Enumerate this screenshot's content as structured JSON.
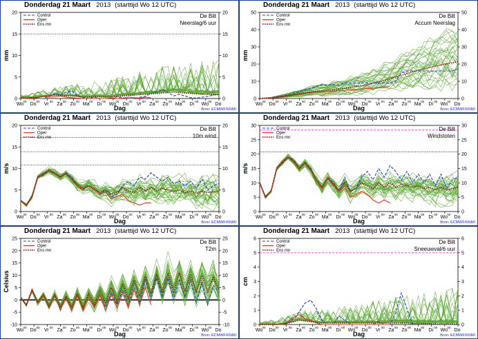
{
  "meta": {
    "title_main": "Donderdag 21 Maart",
    "title_year": "2013",
    "title_run": "(starttijd  Wo 12 UTC)",
    "location": "De Bilt",
    "source": "Bron: ECMWF/KNMI",
    "xlabel": "Dag",
    "days": [
      "Wo",
      "Do",
      "Vr",
      "Za",
      "Zo",
      "Ma",
      "Di",
      "Wo",
      "Do",
      "Vr",
      "Za",
      "Zo",
      "Ma",
      "Di",
      "Wo",
      "Do"
    ],
    "hour_mark": "00",
    "legend": [
      "Control",
      "Oper",
      "Ens mn"
    ]
  },
  "colors": {
    "control": "#1f3fd0",
    "oper": "#e8321e",
    "ensmean": "#8b1a1a",
    "members": "#5aa832",
    "refline": "#000000",
    "magenta": "#ff33ff",
    "source": "#1a1aff"
  },
  "chart_data": [
    {
      "type": "line",
      "id": "precip6h",
      "label": "Neerslag/6 uur",
      "ylabel": "mm",
      "ylim": [
        0,
        20
      ],
      "yticks": [
        0,
        5,
        10,
        15,
        20
      ],
      "ref_lines": [
        {
          "value": 15,
          "style": "dotted",
          "color": "black"
        }
      ],
      "series": [
        {
          "name": "Control",
          "values": [
            0,
            0,
            0.3,
            0,
            0,
            0.5,
            1.2,
            0.8,
            1.5,
            1.8,
            0.6,
            0.2,
            0,
            0.3,
            0,
            0,
            0,
            0.4,
            0.2,
            0,
            0,
            0.3,
            0.5,
            1.2,
            1.6,
            2.1,
            1.4,
            0.6,
            1,
            0.6,
            0.2,
            0.1,
            0.3,
            0.5,
            0.8,
            1
          ]
        },
        {
          "name": "Oper",
          "values": [
            0,
            0,
            0.1,
            0.2,
            0.5,
            0.3,
            0.4,
            0.6,
            0.3,
            0.2,
            0.1,
            0,
            0,
            0,
            0,
            0,
            0.2,
            0,
            0.1,
            0.3,
            0.2,
            0.1,
            0.3,
            0.2
          ]
        },
        {
          "name": "Ens mn",
          "values": [
            0.2,
            0.1,
            0.2,
            0.3,
            0.5,
            0.6,
            0.8,
            0.7,
            0.6,
            0.6,
            0.5,
            0.3,
            0.3,
            0.4,
            0.4,
            0.3,
            0.4,
            0.5,
            0.6,
            0.7,
            0.8,
            0.9,
            1,
            1.1,
            1.2,
            1.3,
            1.4,
            1.5,
            1.4,
            1.3,
            1.2,
            1.1,
            1,
            1,
            0.9,
            0.9
          ]
        }
      ]
    },
    {
      "type": "line",
      "id": "precipAccum",
      "label": "Accum Neerslag",
      "ylabel": "mm",
      "ylim": [
        0,
        50
      ],
      "yticks": [
        0,
        10,
        20,
        30,
        40,
        50
      ],
      "ref_lines": [],
      "series": [
        {
          "name": "Control",
          "values": [
            0,
            0,
            0.5,
            1,
            1.5,
            2,
            3,
            4,
            5,
            6,
            7,
            8,
            8,
            8,
            8,
            9,
            9,
            9,
            9,
            9,
            9,
            9,
            9,
            9,
            10,
            15,
            16,
            16,
            16,
            16,
            16,
            16,
            16,
            16,
            16,
            17
          ]
        },
        {
          "name": "Oper",
          "values": [
            0,
            0,
            0.2,
            0.5,
            1,
            1.5,
            2,
            2.5,
            3,
            3.5,
            3.8,
            4,
            4.2,
            4.5,
            4.6,
            4.8,
            5,
            5.2,
            5.5,
            5.8,
            6,
            6.3,
            6.5,
            7
          ]
        },
        {
          "name": "Ens mn",
          "values": [
            0,
            0.2,
            0.4,
            0.8,
            1.2,
            1.6,
            2.2,
            2.8,
            3.3,
            3.8,
            4.2,
            4.5,
            4.8,
            5.2,
            5.6,
            6,
            6.5,
            7,
            7.5,
            8.2,
            9,
            9.8,
            10.6,
            11.5,
            12.5,
            13.5,
            14.5,
            15.5,
            16.4,
            17.2,
            18,
            18.8,
            19.5,
            20.2,
            20.8,
            21.5
          ]
        }
      ]
    },
    {
      "type": "line",
      "id": "wind10m",
      "label": "10m wind",
      "ylabel": "m/s",
      "ylim": [
        0,
        20
      ],
      "yticks": [
        0,
        5,
        10,
        15,
        20
      ],
      "ref_lines": [
        {
          "value": 10.8,
          "style": "dotted",
          "color": "black"
        },
        {
          "value": 13.9,
          "style": "dotted",
          "color": "black"
        },
        {
          "value": 17.2,
          "style": "dotted",
          "color": "black"
        }
      ],
      "series": [
        {
          "name": "Control",
          "values": [
            2.5,
            1.5,
            3.5,
            8,
            8.5,
            9.5,
            9,
            8,
            9,
            8,
            6,
            5,
            6,
            5,
            4,
            5,
            3.5,
            4,
            6,
            7,
            6,
            8,
            7.5,
            9,
            8,
            7,
            8,
            6.5,
            7,
            6,
            7,
            5.5,
            7.5,
            5,
            6,
            6.5
          ]
        },
        {
          "name": "Oper",
          "values": [
            2.5,
            1.5,
            3.5,
            8,
            8.8,
            9.6,
            8.8,
            8.2,
            8.8,
            7.5,
            6,
            5.2,
            6,
            5,
            4,
            4.5,
            3,
            3.5,
            4,
            2.5,
            2,
            1.5,
            2,
            2
          ]
        },
        {
          "name": "Ens mn",
          "values": [
            2.5,
            1.5,
            3.5,
            8,
            8.7,
            9.5,
            8.8,
            8,
            8.8,
            7.6,
            6.2,
            5.4,
            6,
            5.2,
            4.4,
            5,
            4,
            4.5,
            5.5,
            4.8,
            4.4,
            5.6,
            4.8,
            5.6,
            4.8,
            5.4,
            5,
            4.6,
            5,
            4.4,
            4.8,
            4.2,
            4.8,
            4.4,
            4.6,
            4.8
          ]
        }
      ]
    },
    {
      "type": "line",
      "id": "gusts",
      "label": "Windstoten",
      "ylabel": "m/s",
      "ylim": [
        0,
        30
      ],
      "yticks": [
        0,
        5,
        10,
        15,
        20,
        25,
        30
      ],
      "ref_lines": [
        {
          "value": 28.4,
          "style": "dashed",
          "color": "magenta"
        },
        {
          "value": 20.8,
          "style": "dotted",
          "color": "black"
        }
      ],
      "series": [
        {
          "name": "Control",
          "values": [
            10,
            5,
            7,
            15,
            17,
            19,
            18,
            15,
            17,
            15,
            11,
            8,
            12,
            10,
            7,
            12,
            7,
            8,
            12,
            14,
            11,
            15,
            12,
            16,
            14,
            11,
            14,
            10,
            13,
            10,
            13,
            9,
            13,
            8,
            11,
            12
          ]
        },
        {
          "name": "Oper",
          "values": [
            10,
            5,
            7,
            15,
            17.5,
            19,
            17.5,
            15,
            17,
            14.5,
            11,
            8,
            12,
            9,
            7,
            9,
            5,
            6,
            7,
            6,
            4,
            3,
            4,
            3
          ]
        },
        {
          "name": "Ens mn",
          "values": [
            10,
            5,
            7,
            15,
            17,
            19,
            17.5,
            15,
            17,
            14.5,
            11,
            8.5,
            11.5,
            9.5,
            7.5,
            10,
            7,
            8,
            10,
            9,
            8,
            10,
            8.5,
            10,
            8.5,
            9.5,
            9,
            8.5,
            9,
            8,
            8.5,
            7.5,
            8.5,
            7.5,
            8,
            8.5
          ]
        }
      ]
    },
    {
      "type": "line",
      "id": "t2m",
      "label": "T2m",
      "ylabel": "Celsius",
      "ylim": [
        -10,
        25
      ],
      "yticks": [
        -10,
        -5,
        0,
        5,
        10,
        15,
        20,
        25
      ],
      "ref_lines": [
        {
          "value": 0,
          "style": "solid",
          "color": "black"
        }
      ],
      "series": [
        {
          "name": "Control",
          "values": [
            1,
            -2,
            4,
            -1,
            2,
            -3,
            2,
            -4,
            1,
            -4,
            2,
            -4,
            1,
            -3,
            2,
            -3,
            3,
            -2,
            4,
            -2,
            6,
            -1,
            8,
            0,
            9,
            1,
            9,
            0,
            8,
            1,
            8,
            -1,
            7,
            -2,
            6,
            3
          ]
        },
        {
          "name": "Oper",
          "values": [
            1,
            -2,
            4,
            -1,
            2,
            -3,
            2,
            -4,
            1,
            -4,
            2,
            -4,
            1,
            -3,
            2,
            -4,
            2,
            -3,
            3,
            -3,
            4,
            -2,
            5,
            -2
          ]
        },
        {
          "name": "Ens mn",
          "values": [
            1,
            -2,
            4,
            -1,
            2,
            -2.5,
            2,
            -3,
            1.5,
            -3,
            2.5,
            -3,
            2.5,
            -2,
            3.5,
            -1.5,
            5,
            -0.5,
            6.5,
            0.5,
            8,
            1.5,
            9.5,
            2.5,
            10.5,
            3,
            11,
            3.5,
            11,
            3.5,
            10.5,
            3,
            10,
            3,
            9.5,
            4
          ]
        }
      ]
    },
    {
      "type": "line",
      "id": "snow",
      "label": "Sneeuwval/6 uur",
      "ylabel": "cm",
      "ylim": [
        0,
        6
      ],
      "yticks": [
        0,
        1,
        2,
        3,
        4,
        5,
        6
      ],
      "ref_lines": [
        {
          "value": 5,
          "style": "dashed",
          "color": "magenta"
        }
      ],
      "series": [
        {
          "name": "Control",
          "values": [
            0,
            0,
            0,
            0,
            0,
            0.1,
            0.4,
            0.9,
            1.5,
            1.7,
            1.1,
            0.3,
            0,
            0,
            0.6,
            0.3,
            0,
            0,
            0,
            0,
            0,
            0.2,
            0,
            0,
            0.8,
            2.2,
            1.1,
            0,
            0,
            0,
            0,
            0,
            0,
            0,
            0,
            0
          ]
        },
        {
          "name": "Oper",
          "values": [
            0,
            0,
            0,
            0,
            0,
            0.2,
            0.5,
            0.7,
            0.4,
            0.3,
            0.1,
            0,
            0,
            0,
            0,
            0,
            0,
            0,
            0,
            0,
            0,
            0,
            0,
            0
          ]
        },
        {
          "name": "Ens mn",
          "values": [
            0,
            0,
            0,
            0,
            0.05,
            0.1,
            0.2,
            0.3,
            0.25,
            0.2,
            0.15,
            0.1,
            0.1,
            0.1,
            0.1,
            0.1,
            0.1,
            0.1,
            0.1,
            0.1,
            0.1,
            0.1,
            0.1,
            0.1,
            0.1,
            0.1,
            0.1,
            0.05,
            0.05,
            0.05,
            0.05,
            0.05,
            0.05,
            0.05,
            0.05,
            0.05
          ]
        }
      ]
    }
  ]
}
